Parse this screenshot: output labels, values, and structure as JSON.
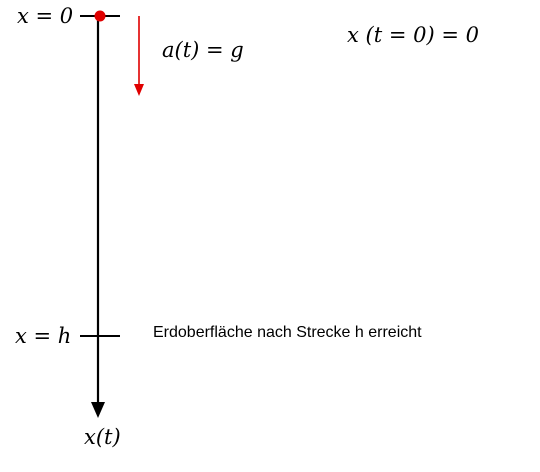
{
  "labels": {
    "x_zero": "x = 0",
    "x_h": "x = h",
    "acceleration": "a(t) = g",
    "initial_condition": "x (t = 0) = 0",
    "ground_note": "Erdoberfläche nach Strecke h erreicht",
    "axis": "x(t)"
  },
  "colors": {
    "axis": "#000000",
    "body_point": "#e00000",
    "acceleration_arrow": "#e00000",
    "text": "#000000"
  },
  "icons": {
    "body_point": "red-dot",
    "acceleration_arrow": "arrow-down",
    "axis_arrow": "arrow-down"
  }
}
